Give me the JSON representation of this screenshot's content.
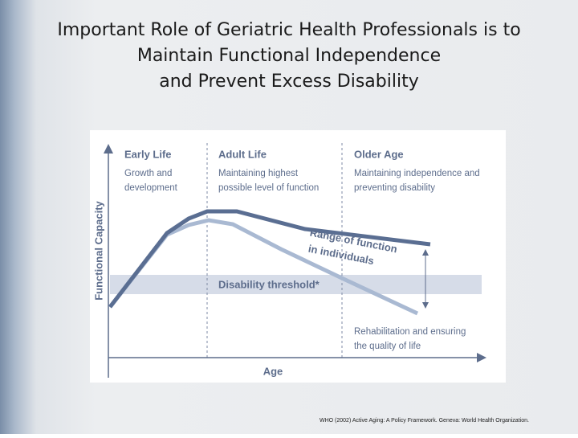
{
  "slide": {
    "title": [
      "Important Role of Geriatric Health Professionals is to",
      "Maintain Functional Independence",
      "and Prevent Excess Disability"
    ],
    "diagram": {
      "y_axis_label": "Functional Capacity",
      "x_axis_label": "Age",
      "stages": [
        {
          "heading": "Early Life",
          "lines": [
            "Growth and",
            "development"
          ]
        },
        {
          "heading": "Adult Life",
          "lines": [
            "Maintaining highest",
            "possible level of function"
          ]
        },
        {
          "heading": "Older Age",
          "lines": [
            "Maintaining independence and",
            "preventing disability"
          ]
        }
      ],
      "range_label": [
        "Range of function",
        "in individuals"
      ],
      "threshold_label": "Disability threshold*",
      "rehab_label": [
        "Rehabilitation and ensuring",
        "the quality of life"
      ]
    },
    "citation": "WHO (2002) Active Aging: A Policy Framework. Geneva: World Health Organization."
  }
}
